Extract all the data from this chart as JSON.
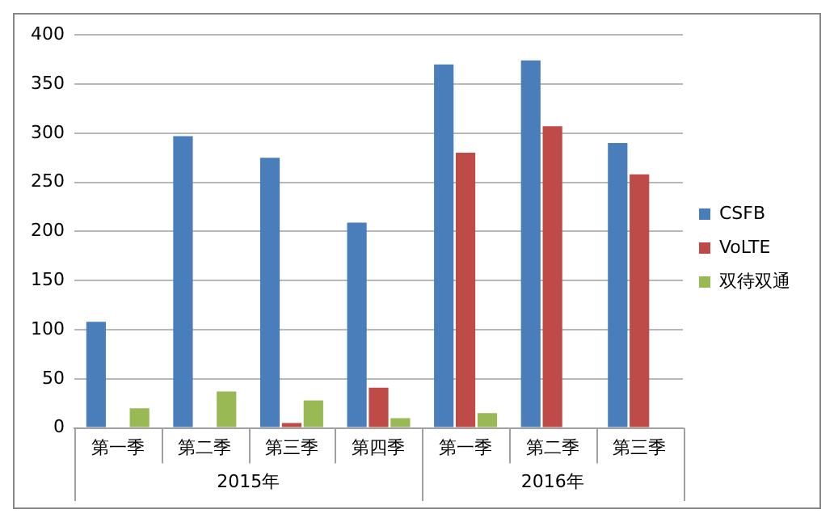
{
  "chart_data": {
    "type": "bar",
    "categories": [
      "第一季",
      "第二季",
      "第三季",
      "第四季",
      "第一季",
      "第二季",
      "第三季"
    ],
    "series": [
      {
        "name": "CSFB",
        "color": "#4a7ebb",
        "values": [
          108,
          297,
          275,
          209,
          370,
          374,
          290
        ]
      },
      {
        "name": "VoLTE",
        "color": "#be4b48",
        "values": [
          0,
          0,
          5,
          41,
          280,
          307,
          258
        ]
      },
      {
        "name": "双待双通",
        "color": "#98b954",
        "values": [
          20,
          37,
          28,
          10,
          15,
          0,
          0
        ]
      }
    ],
    "annotations": [
      "2015年",
      "2016年"
    ],
    "ylim": [
      0,
      400
    ],
    "yticks": [
      0,
      50,
      100,
      150,
      200,
      250,
      300,
      350,
      400
    ],
    "grid": "y",
    "legend": "right"
  }
}
